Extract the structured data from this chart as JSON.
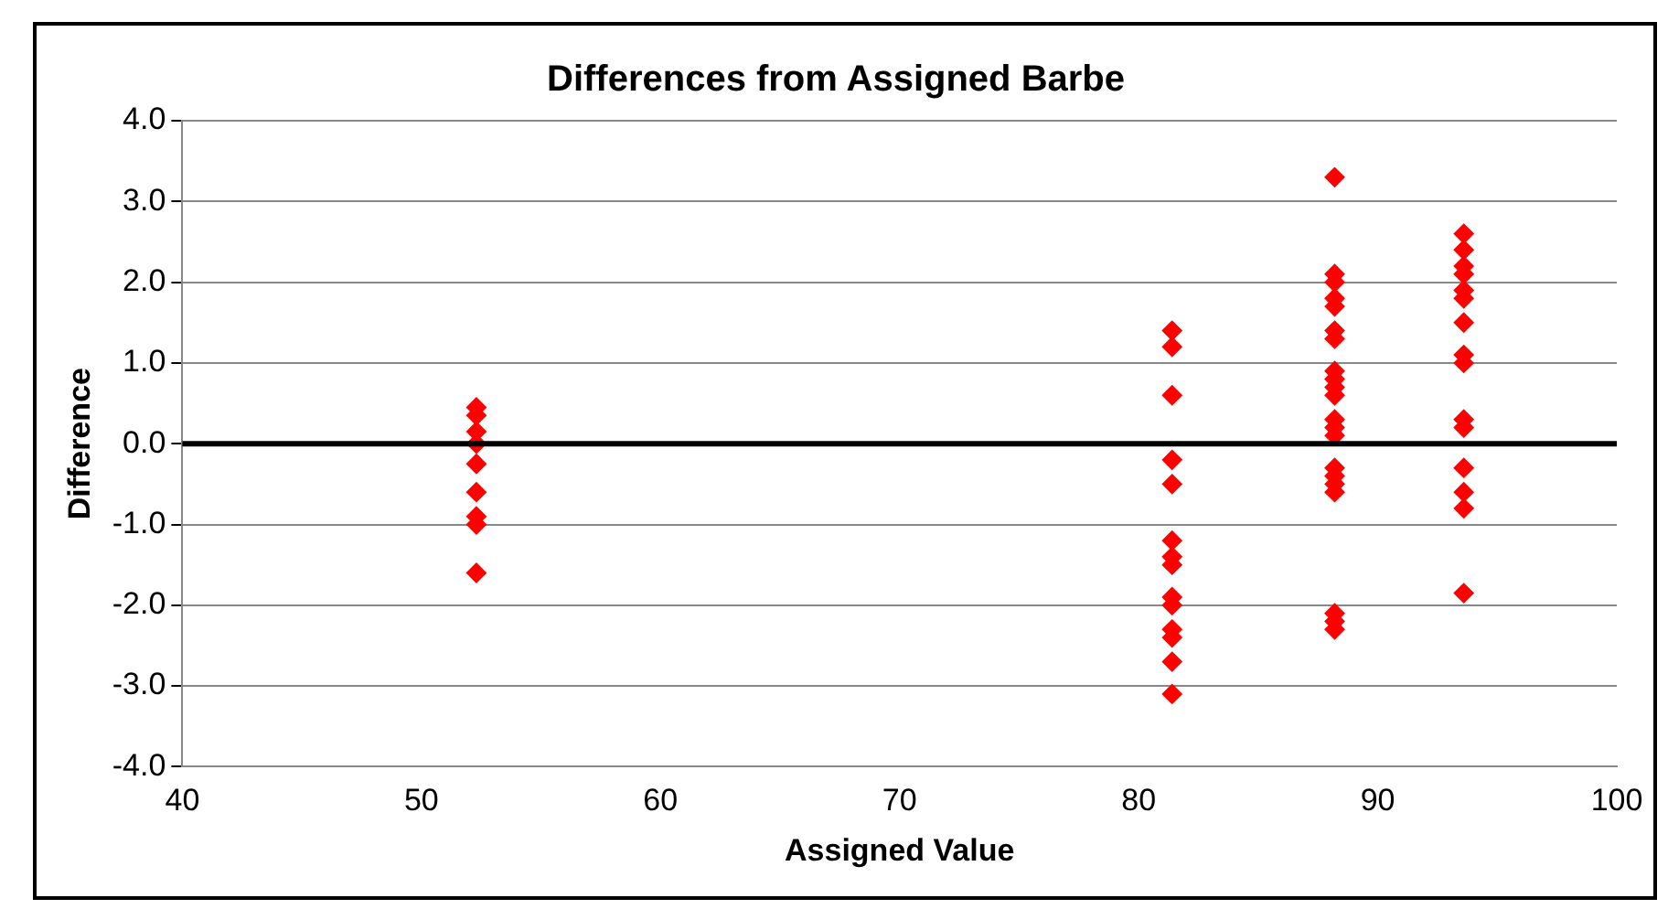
{
  "chart_data": {
    "type": "scatter",
    "title": "Differences from Assigned Barbe",
    "xlabel": "Assigned Value",
    "ylabel": "Difference",
    "x": [
      52.3,
      52.3,
      52.3,
      52.3,
      52.3,
      52.3,
      52.3,
      52.3,
      52.3,
      81.4,
      81.4,
      81.4,
      81.4,
      81.4,
      81.4,
      81.4,
      81.4,
      81.4,
      81.4,
      81.4,
      81.4,
      81.4,
      81.4,
      88.2,
      88.2,
      88.2,
      88.2,
      88.2,
      88.2,
      88.2,
      88.2,
      88.2,
      88.2,
      88.2,
      88.2,
      88.2,
      88.2,
      88.2,
      88.2,
      88.2,
      88.2,
      88.2,
      88.2,
      88.2,
      93.6,
      93.6,
      93.6,
      93.6,
      93.6,
      93.6,
      93.6,
      93.6,
      93.6,
      93.6,
      93.6,
      93.6,
      93.6,
      93.6,
      93.6
    ],
    "series": [
      {
        "color": "#ff0000",
        "values": [
          0.45,
          0.35,
          0.15,
          0.0,
          -0.25,
          -0.6,
          -0.9,
          -1.0,
          -1.6,
          1.4,
          1.2,
          0.6,
          -0.2,
          -0.5,
          -1.2,
          -1.4,
          -1.5,
          -1.9,
          -2.0,
          -2.3,
          -2.4,
          -2.7,
          -3.1,
          3.3,
          2.1,
          2.0,
          1.8,
          1.7,
          1.4,
          1.3,
          0.9,
          0.8,
          0.7,
          0.6,
          0.3,
          0.2,
          0.1,
          -0.3,
          -0.4,
          -0.5,
          -0.6,
          -2.1,
          -2.2,
          -2.3,
          2.6,
          2.4,
          2.2,
          2.1,
          1.9,
          1.8,
          1.5,
          1.1,
          1.0,
          0.3,
          0.2,
          -0.3,
          -0.6,
          -0.8,
          -1.85
        ]
      }
    ],
    "xlim": [
      40,
      100
    ],
    "xticks": [
      40,
      50,
      60,
      70,
      80,
      90,
      100
    ],
    "ylim": [
      -4,
      4
    ],
    "yticks": [
      {
        "value": -4,
        "label": "-4.0"
      },
      {
        "value": -3,
        "label": "-3.0"
      },
      {
        "value": -2,
        "label": "-2.0"
      },
      {
        "value": -1,
        "label": "-1.0"
      },
      {
        "value": 0,
        "label": "0.0"
      },
      {
        "value": 1,
        "label": "1.0"
      },
      {
        "value": 2,
        "label": "2.0"
      },
      {
        "value": 3,
        "label": "3.0"
      },
      {
        "value": 4,
        "label": "4.0"
      }
    ],
    "ref_lines": [
      {
        "axis": "y",
        "value": 0,
        "color": "#000000"
      }
    ],
    "grid": "y",
    "marker": "diamond"
  }
}
